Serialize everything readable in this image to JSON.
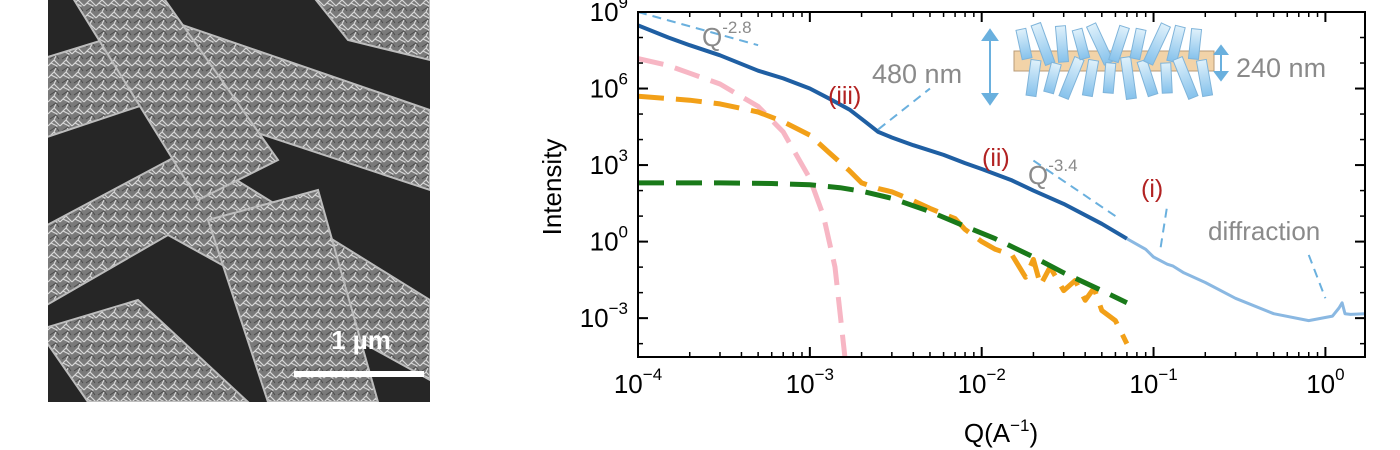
{
  "sem_image": {
    "scale_bar_label": "1 µm"
  },
  "chart_data": {
    "type": "line",
    "xlabel": "Q(A",
    "xlabel_exp": "−1",
    "xlabel_close": ")",
    "ylabel": "Intensity",
    "x_scale": "log",
    "y_scale": "log",
    "xlim": [
      0.0001,
      1.7
    ],
    "ylim": [
      3e-05,
      1000000000
    ],
    "x_ticks": [
      {
        "value": 0.0001,
        "base": "10",
        "exp": "−4"
      },
      {
        "value": 0.001,
        "base": "10",
        "exp": "−3"
      },
      {
        "value": 0.01,
        "base": "10",
        "exp": "−2"
      },
      {
        "value": 0.1,
        "base": "10",
        "exp": "−1"
      },
      {
        "value": 1,
        "base": "10",
        "exp": "0"
      }
    ],
    "y_ticks": [
      {
        "value": 0.001,
        "base": "10",
        "exp": "−3"
      },
      {
        "value": 1,
        "base": "10",
        "exp": "0"
      },
      {
        "value": 1000,
        "base": "10",
        "exp": "3"
      },
      {
        "value": 1000000,
        "base": "10",
        "exp": "6"
      },
      {
        "value": 1000000000,
        "base": "10",
        "exp": "9"
      }
    ],
    "grid": false,
    "series": [
      {
        "style": "solid",
        "color": "#1f5fa3",
        "width": 4,
        "x": [
          0.0001,
          0.00015,
          0.0002,
          0.0003,
          0.0005,
          0.0007,
          0.001,
          0.0013,
          0.0017,
          0.0021,
          0.0025,
          0.003,
          0.004,
          0.006,
          0.008,
          0.01,
          0.015,
          0.02,
          0.03,
          0.05,
          0.07
        ],
        "y": [
          300000000,
          100000000,
          50000000,
          20000000,
          5000000,
          2500000,
          1000000,
          400000,
          150000,
          50000,
          20000,
          12000,
          6000,
          2500,
          1200,
          700,
          250,
          100,
          30,
          5,
          1.3
        ]
      },
      {
        "style": "solid",
        "color": "#8ab8e2",
        "width": 3,
        "x": [
          0.07,
          0.09,
          0.1,
          0.12,
          0.13,
          0.15,
          0.2,
          0.3,
          0.5,
          0.8,
          1.1,
          1.2,
          1.25,
          1.3,
          1.4,
          1.7
        ],
        "y": [
          1.3,
          0.5,
          0.25,
          0.13,
          0.11,
          0.06,
          0.025,
          0.006,
          0.0015,
          0.0008,
          0.0012,
          0.0025,
          0.004,
          0.0015,
          0.0014,
          0.0015
        ]
      },
      {
        "style": "dashed",
        "color": "#f7b6c4",
        "width": 5,
        "x": [
          0.0001,
          0.00015,
          0.0002,
          0.0003,
          0.0005,
          0.0007,
          0.001,
          0.0012,
          0.0014,
          0.0016
        ],
        "y": [
          15000000,
          8000000,
          4000000,
          1500000,
          200000,
          20000,
          300,
          10,
          0.1,
          3e-05
        ]
      },
      {
        "style": "dashed",
        "color": "#f2a018",
        "width": 5,
        "x": [
          0.0001,
          0.0002,
          0.0003,
          0.0005,
          0.0007,
          0.001,
          0.0013,
          0.0017,
          0.002,
          0.0025,
          0.003,
          0.004,
          0.005,
          0.006,
          0.007,
          0.008,
          0.01,
          0.012,
          0.015,
          0.018,
          0.02,
          0.022,
          0.025,
          0.03,
          0.035,
          0.04,
          0.045,
          0.05,
          0.06,
          0.07
        ],
        "y": [
          500000,
          350000,
          250000,
          120000,
          50000,
          15000,
          3000,
          600,
          200,
          120,
          90,
          40,
          20,
          12,
          8,
          3,
          1,
          0.5,
          0.3,
          0.04,
          0.2,
          0.02,
          0.1,
          0.012,
          0.03,
          0.005,
          0.015,
          0.002,
          0.0008,
          0.0001
        ]
      },
      {
        "style": "dashed",
        "color": "#1a7a1a",
        "width": 5,
        "x": [
          0.0001,
          0.0003,
          0.0006,
          0.001,
          0.0015,
          0.002,
          0.003,
          0.005,
          0.008,
          0.012,
          0.02,
          0.03,
          0.05,
          0.07
        ],
        "y": [
          200,
          200,
          190,
          170,
          130,
          95,
          50,
          15,
          4,
          1.3,
          0.25,
          0.06,
          0.012,
          0.004
        ]
      }
    ],
    "guide_lines": [
      {
        "color": "#6ab0de",
        "x": [
          0.0001,
          0.0005
        ],
        "y": [
          1000000000,
          50000000
        ]
      },
      {
        "color": "#6ab0de",
        "x": [
          0.02,
          0.06
        ],
        "y": [
          1500,
          10
        ]
      },
      {
        "color": "#6ab0de",
        "x": [
          0.0025,
          0.005
        ],
        "y": [
          25000,
          1000000
        ]
      },
      {
        "color": "#6ab0de",
        "x": [
          0.11,
          0.12
        ],
        "y": [
          0.6,
          25
        ]
      },
      {
        "color": "#6ab0de",
        "x": [
          0.8,
          1.0
        ],
        "y": [
          0.3,
          0.006
        ]
      }
    ],
    "annotations": {
      "q_top_base": "Q",
      "q_top_exp": "-2.8",
      "q_mid_base": "Q",
      "q_mid_exp": "-3.4",
      "label_iii": "(iii)",
      "label_ii": "(ii)",
      "label_i": "(i)",
      "diffraction": "diffraction",
      "dim_480": "480 nm",
      "dim_240": "240 nm",
      "annotation_color": "#8a8a8a",
      "roman_color": "#b22222"
    }
  }
}
